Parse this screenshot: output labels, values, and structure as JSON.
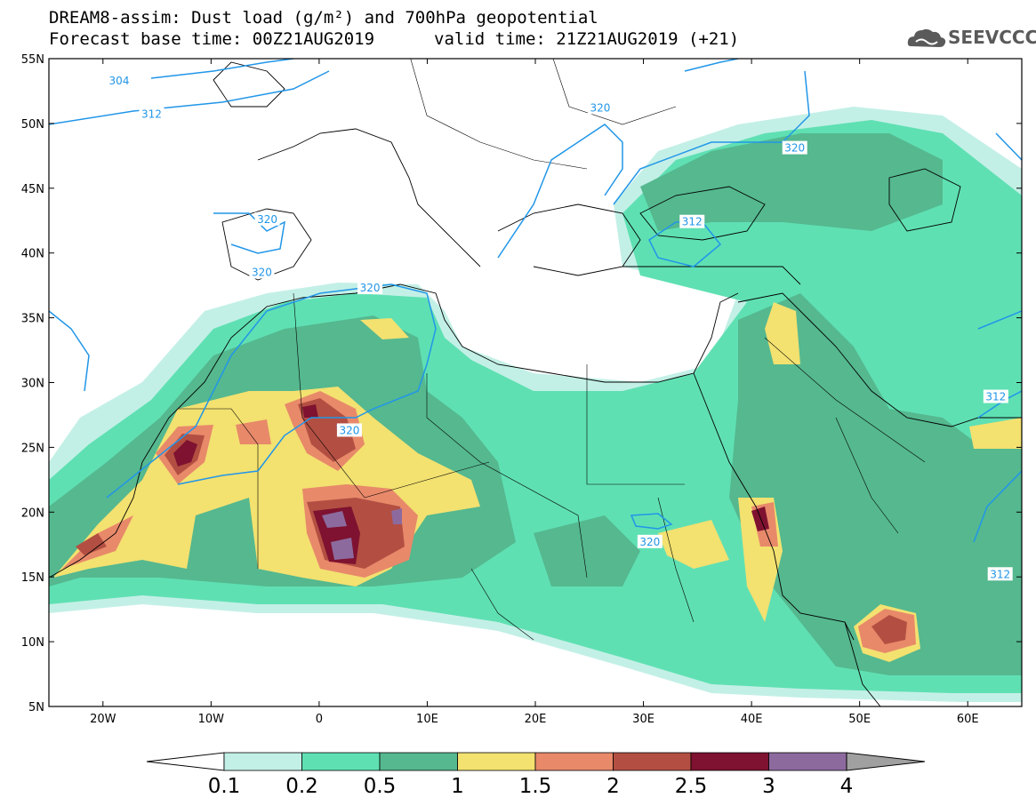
{
  "title": {
    "line1": "DREAM8-assim: Dust load (g/m²) and 700hPa geopotential",
    "line2": "Forecast base time: 00Z21AUG2019",
    "valid": "valid time: 21Z21AUG2019 (+21)"
  },
  "logo": {
    "text": "SEEVCCC",
    "icon": "cloud-icon"
  },
  "map_extent": {
    "lon": [
      -25,
      65
    ],
    "lat": [
      5,
      55
    ]
  },
  "lat_ticks": [
    {
      "value": 55,
      "label": "55N"
    },
    {
      "value": 50,
      "label": "50N"
    },
    {
      "value": 45,
      "label": "45N"
    },
    {
      "value": 40,
      "label": "40N"
    },
    {
      "value": 35,
      "label": "35N"
    },
    {
      "value": 30,
      "label": "30N"
    },
    {
      "value": 25,
      "label": "25N"
    },
    {
      "value": 20,
      "label": "20N"
    },
    {
      "value": 15,
      "label": "15N"
    },
    {
      "value": 10,
      "label": "10N"
    },
    {
      "value": 5,
      "label": "5N"
    }
  ],
  "lon_ticks": [
    {
      "value": -20,
      "label": "20W"
    },
    {
      "value": -10,
      "label": "10W"
    },
    {
      "value": 0,
      "label": "0"
    },
    {
      "value": 10,
      "label": "10E"
    },
    {
      "value": 20,
      "label": "20E"
    },
    {
      "value": 30,
      "label": "30E"
    },
    {
      "value": 40,
      "label": "40E"
    },
    {
      "value": 50,
      "label": "50E"
    },
    {
      "value": 60,
      "label": "60E"
    }
  ],
  "colorbar": {
    "labels": [
      "0.1",
      "0.2",
      "0.5",
      "1",
      "1.5",
      "2",
      "2.5",
      "3",
      "4"
    ],
    "colors": [
      "#c3f0e6",
      "#5fe0b3",
      "#55b88f",
      "#f3e170",
      "#e8896a",
      "#b34f42",
      "#7e1230",
      "#8c6a9e"
    ],
    "under_color": "#ffffff",
    "over_color": "#a0a0a0"
  },
  "contour_labels": [
    {
      "text": "304",
      "lon": -18.5,
      "lat": 53.3
    },
    {
      "text": "312",
      "lon": -15.5,
      "lat": 50.7
    },
    {
      "text": "320",
      "lon": 26,
      "lat": 51.2
    },
    {
      "text": "320",
      "lon": 44,
      "lat": 48.1
    },
    {
      "text": "312",
      "lon": 34.5,
      "lat": 42.4
    },
    {
      "text": "320",
      "lon": -4.8,
      "lat": 42.6
    },
    {
      "text": "320",
      "lon": -5.3,
      "lat": 38.5
    },
    {
      "text": "320",
      "lon": 4.7,
      "lat": 37.3
    },
    {
      "text": "320",
      "lon": 2.8,
      "lat": 26.3
    },
    {
      "text": "320",
      "lon": 30.6,
      "lat": 17.7
    },
    {
      "text": "312",
      "lon": 62.6,
      "lat": 28.9
    },
    {
      "text": "312",
      "lon": 63,
      "lat": 15.2
    }
  ]
}
